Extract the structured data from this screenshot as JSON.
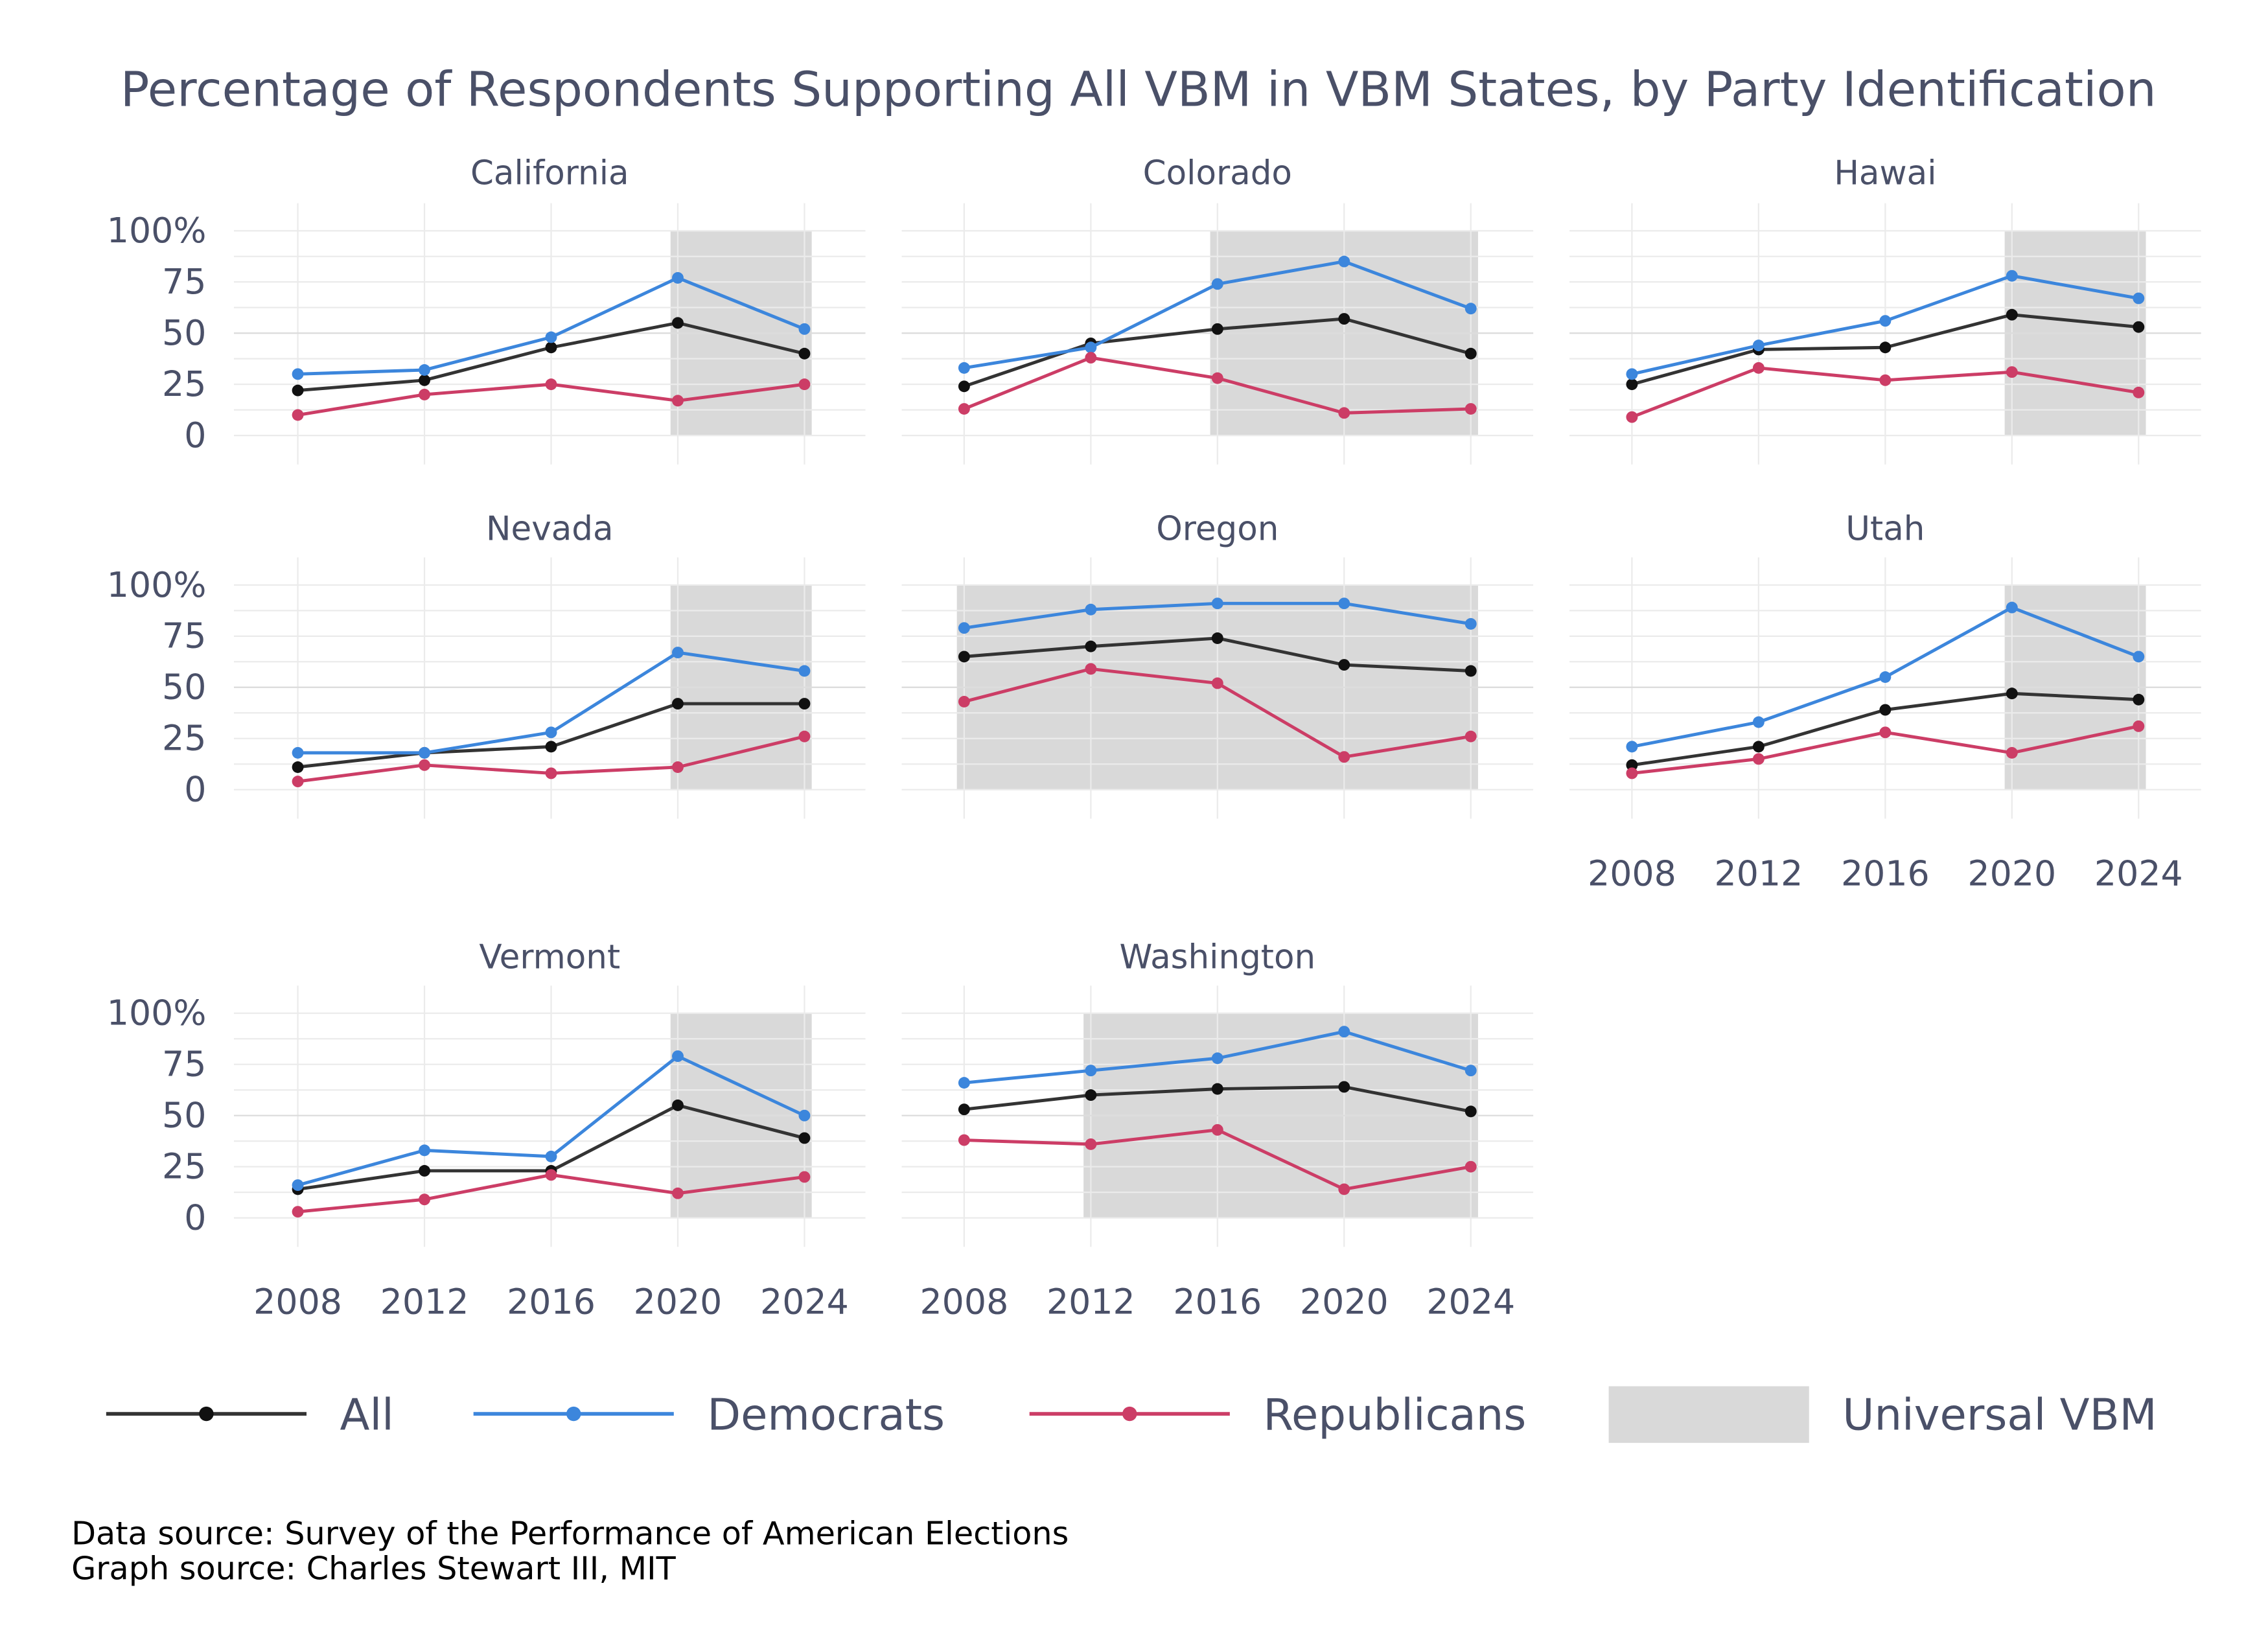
{
  "chart_data": {
    "type": "line",
    "title": "Percentage of Respondents Supporting All VBM in VBM States, by Party Identification",
    "x": [
      2008,
      2012,
      2016,
      2020,
      2024
    ],
    "x_tick_labels": [
      "2008",
      "2012",
      "2016",
      "2020",
      "2024"
    ],
    "y_tick_labels": [
      "100%",
      "75",
      "50",
      "25",
      "0"
    ],
    "y_ticks": [
      100,
      75,
      50,
      25,
      0
    ],
    "ylim": [
      0,
      100
    ],
    "grid": true,
    "legend_position": "bottom",
    "legend": [
      {
        "label": "All",
        "color": "#333333",
        "kind": "line"
      },
      {
        "label": "Democrats",
        "color": "#3c86dc",
        "kind": "line"
      },
      {
        "label": "Republicans",
        "color": "#cc3d66",
        "kind": "line"
      },
      {
        "label": "Universal VBM",
        "color": "#d9d9d9",
        "kind": "area"
      }
    ],
    "panels": [
      {
        "state": "California",
        "universal_vbm_from": 2020,
        "series": [
          {
            "name": "All",
            "values": [
              22,
              27,
              43,
              55,
              40
            ]
          },
          {
            "name": "Democrats",
            "values": [
              30,
              32,
              48,
              77,
              52
            ]
          },
          {
            "name": "Republicans",
            "values": [
              10,
              20,
              25,
              17,
              25
            ]
          }
        ]
      },
      {
        "state": "Colorado",
        "universal_vbm_from": 2016,
        "series": [
          {
            "name": "All",
            "values": [
              24,
              45,
              52,
              57,
              40
            ]
          },
          {
            "name": "Democrats",
            "values": [
              33,
              43,
              74,
              85,
              62
            ]
          },
          {
            "name": "Republicans",
            "values": [
              13,
              38,
              28,
              11,
              13
            ]
          }
        ]
      },
      {
        "state": "Hawai",
        "universal_vbm_from": 2020,
        "series": [
          {
            "name": "All",
            "values": [
              25,
              42,
              43,
              59,
              53
            ]
          },
          {
            "name": "Democrats",
            "values": [
              30,
              44,
              56,
              78,
              67
            ]
          },
          {
            "name": "Republicans",
            "values": [
              9,
              33,
              27,
              31,
              21
            ]
          }
        ]
      },
      {
        "state": "Nevada",
        "universal_vbm_from": 2020,
        "series": [
          {
            "name": "All",
            "values": [
              11,
              18,
              21,
              42,
              42
            ]
          },
          {
            "name": "Democrats",
            "values": [
              18,
              18,
              28,
              67,
              58
            ]
          },
          {
            "name": "Republicans",
            "values": [
              4,
              12,
              8,
              11,
              26
            ]
          }
        ]
      },
      {
        "state": "Oregon",
        "universal_vbm_from": 2008,
        "series": [
          {
            "name": "All",
            "values": [
              65,
              70,
              74,
              61,
              58
            ]
          },
          {
            "name": "Democrats",
            "values": [
              79,
              88,
              91,
              91,
              81
            ]
          },
          {
            "name": "Republicans",
            "values": [
              43,
              59,
              52,
              16,
              26
            ]
          }
        ]
      },
      {
        "state": "Utah",
        "universal_vbm_from": 2020,
        "series": [
          {
            "name": "All",
            "values": [
              12,
              21,
              39,
              47,
              44
            ]
          },
          {
            "name": "Democrats",
            "values": [
              21,
              33,
              55,
              89,
              65
            ]
          },
          {
            "name": "Republicans",
            "values": [
              8,
              15,
              28,
              18,
              31
            ]
          }
        ]
      },
      {
        "state": "Vermont",
        "universal_vbm_from": 2020,
        "series": [
          {
            "name": "All",
            "values": [
              14,
              23,
              23,
              55,
              39
            ]
          },
          {
            "name": "Democrats",
            "values": [
              16,
              33,
              30,
              79,
              50
            ]
          },
          {
            "name": "Republicans",
            "values": [
              3,
              9,
              21,
              12,
              20
            ]
          }
        ]
      },
      {
        "state": "Washington",
        "universal_vbm_from": 2012,
        "series": [
          {
            "name": "All",
            "values": [
              53,
              60,
              63,
              64,
              52
            ]
          },
          {
            "name": "Democrats",
            "values": [
              66,
              72,
              78,
              91,
              72
            ]
          },
          {
            "name": "Republicans",
            "values": [
              38,
              36,
              43,
              14,
              25
            ]
          }
        ]
      }
    ]
  },
  "captions": {
    "data_source": "Data source:  Survey of the Performance of American Elections",
    "graph_source": "Graph source:  Charles Stewart III, MIT"
  }
}
